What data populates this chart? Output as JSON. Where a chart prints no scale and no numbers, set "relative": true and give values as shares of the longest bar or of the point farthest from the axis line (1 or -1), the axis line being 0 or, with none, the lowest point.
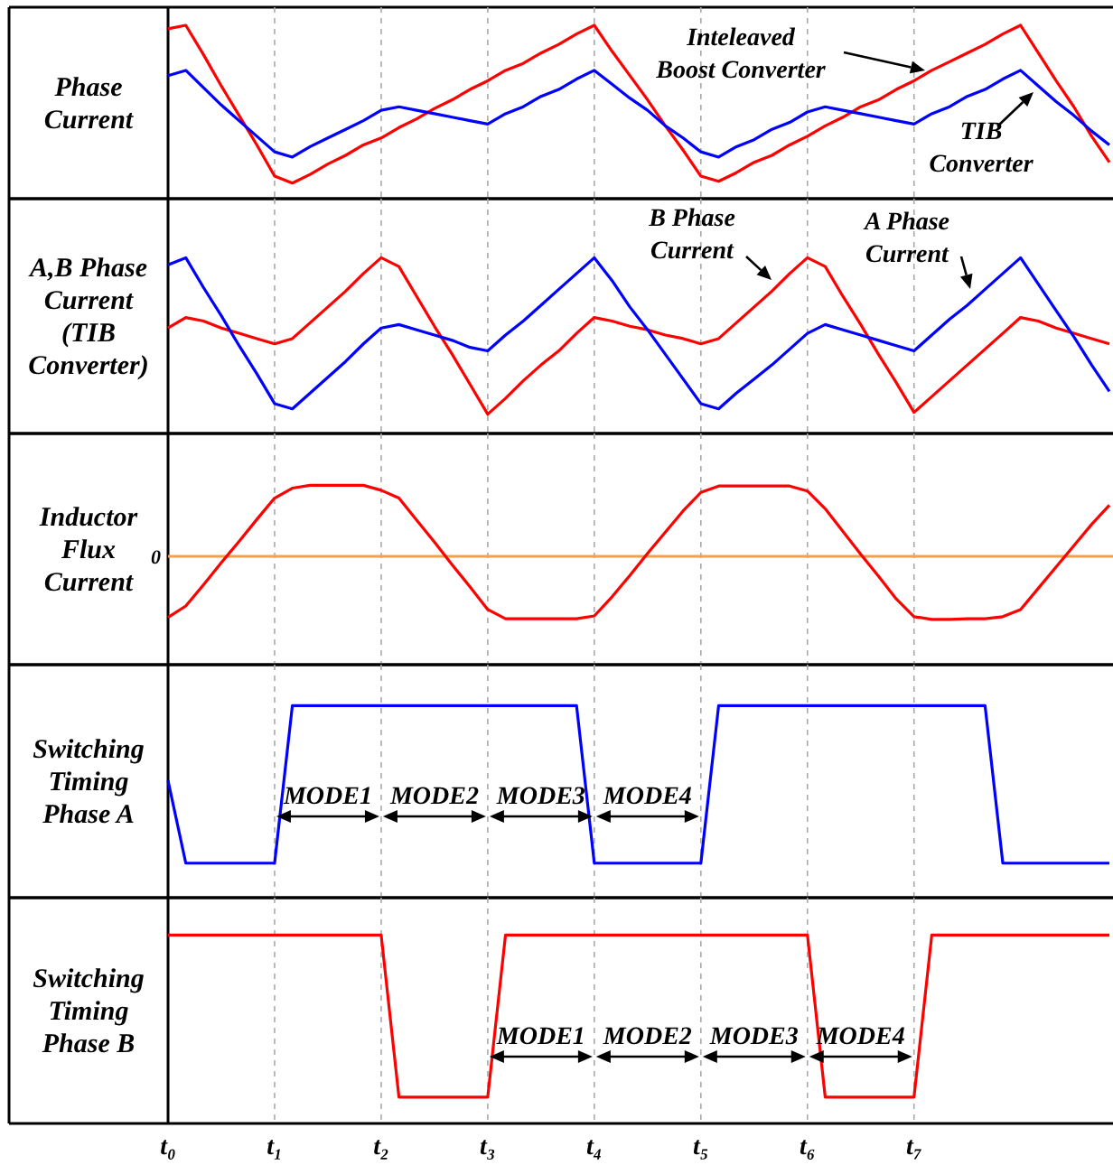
{
  "chart_data": [
    {
      "type": "line",
      "ylabel": "Phase Current",
      "relative": true,
      "grid": "x",
      "tick_labels": false,
      "categories": [
        null,
        null,
        null,
        null,
        null,
        null,
        null,
        null,
        null,
        null,
        null,
        null,
        null,
        null,
        null,
        null,
        null,
        null,
        null,
        null,
        null,
        null,
        null,
        null,
        null,
        null,
        null,
        null,
        null,
        null,
        null,
        null,
        null,
        null,
        null,
        null,
        null,
        null,
        null,
        null,
        null,
        null,
        null,
        null,
        null,
        null,
        null,
        null,
        null,
        null,
        null,
        null,
        null,
        null
      ],
      "series": [
        {
          "color": "#ff0000",
          "values": [
            0.98,
            1,
            0.83,
            0.65,
            0.48,
            0.31,
            0.13,
            0.09,
            0.14,
            0.2,
            0.25,
            0.31,
            0.35,
            0.41,
            0.46,
            0.52,
            0.57,
            0.63,
            0.68,
            0.74,
            0.78,
            0.84,
            0.89,
            0.95,
            1,
            0.85,
            0.71,
            0.57,
            0.42,
            0.28,
            0.13,
            0.1,
            0.15,
            0.21,
            0.25,
            0.31,
            0.36,
            0.42,
            0.47,
            0.53,
            0.57,
            0.63,
            0.68,
            0.74,
            0.79,
            0.84,
            0.89,
            0.95,
            1,
            0.84,
            0.68,
            0.53,
            0.36,
            0.21
          ]
        },
        {
          "color": "#0000ff",
          "values": [
            0.71,
            0.74,
            0.64,
            0.54,
            0.45,
            0.36,
            0.27,
            0.24,
            0.3,
            0.35,
            0.4,
            0.45,
            0.51,
            0.53,
            0.51,
            0.49,
            0.47,
            0.45,
            0.43,
            0.49,
            0.53,
            0.59,
            0.63,
            0.69,
            0.74,
            0.66,
            0.58,
            0.51,
            0.42,
            0.35,
            0.27,
            0.24,
            0.3,
            0.34,
            0.4,
            0.44,
            0.5,
            0.53,
            0.51,
            0.49,
            0.47,
            0.45,
            0.43,
            0.49,
            0.53,
            0.59,
            0.63,
            0.69,
            0.74,
            0.65,
            0.56,
            0.48,
            0.39,
            0.31
          ]
        }
      ],
      "annotations": [
        "Inteleaved Boost Converter",
        "TIB Converter"
      ]
    },
    {
      "type": "line",
      "ylabel": "A,B Phase Current (TIB Converter)",
      "relative": true,
      "grid": "x",
      "tick_labels": false,
      "categories": [
        null,
        null,
        null,
        null,
        null,
        null,
        null,
        null,
        null,
        null,
        null,
        null,
        null,
        null,
        null,
        null,
        null,
        null,
        null,
        null,
        null,
        null,
        null,
        null,
        null,
        null,
        null,
        null,
        null,
        null,
        null,
        null,
        null,
        null,
        null,
        null,
        null,
        null,
        null,
        null,
        null,
        null,
        null,
        null,
        null,
        null,
        null,
        null,
        null,
        null,
        null,
        null,
        null,
        null
      ],
      "series": [
        {
          "color": "#ff0000",
          "values": [
            0.6,
            0.66,
            0.64,
            0.6,
            0.57,
            0.54,
            0.51,
            0.54,
            0.63,
            0.72,
            0.81,
            0.91,
            1,
            0.95,
            0.78,
            0.61,
            0.45,
            0.28,
            0.11,
            0.2,
            0.3,
            0.39,
            0.47,
            0.57,
            0.66,
            0.64,
            0.61,
            0.59,
            0.56,
            0.54,
            0.51,
            0.54,
            0.63,
            0.72,
            0.81,
            0.91,
            1,
            0.95,
            0.78,
            0.62,
            0.45,
            0.29,
            0.12,
            0.21,
            0.3,
            0.39,
            0.48,
            0.57,
            0.66,
            0.64,
            0.6,
            0.57,
            0.54,
            0.51
          ]
        },
        {
          "color": "#0000ff",
          "values": [
            0.96,
            1,
            0.83,
            0.67,
            0.5,
            0.34,
            0.17,
            0.14,
            0.23,
            0.32,
            0.41,
            0.51,
            0.6,
            0.62,
            0.59,
            0.56,
            0.53,
            0.49,
            0.47,
            0.56,
            0.64,
            0.73,
            0.82,
            0.91,
            1,
            0.87,
            0.72,
            0.59,
            0.45,
            0.31,
            0.17,
            0.14,
            0.23,
            0.31,
            0.39,
            0.48,
            0.57,
            0.62,
            0.59,
            0.56,
            0.53,
            0.5,
            0.47,
            0.56,
            0.65,
            0.73,
            0.82,
            0.91,
            1,
            0.85,
            0.7,
            0.55,
            0.39,
            0.24
          ]
        }
      ],
      "annotations": [
        "B Phase Current",
        "A Phase Current"
      ]
    },
    {
      "type": "line",
      "ylabel": "Inductor Flux Current",
      "relative": true,
      "grid": "x",
      "tick_labels": false,
      "categories": [
        null,
        null,
        null,
        null,
        null,
        null,
        null,
        null,
        null,
        null,
        null,
        null,
        null,
        null,
        null,
        null,
        null,
        null,
        null,
        null,
        null,
        null,
        null,
        null,
        null,
        null,
        null,
        null,
        null,
        null,
        null,
        null,
        null,
        null,
        null,
        null,
        null,
        null,
        null,
        null,
        null,
        null,
        null,
        null,
        null,
        null,
        null,
        null,
        null,
        null,
        null,
        null,
        null,
        null
      ],
      "series": [
        {
          "color": "#ff0000",
          "values": [
            -0.86,
            -0.7,
            -0.4,
            -0.09,
            0.21,
            0.52,
            0.82,
            0.96,
            1,
            1,
            1,
            1,
            0.93,
            0.82,
            0.51,
            0.2,
            -0.12,
            -0.43,
            -0.75,
            -0.88,
            -0.88,
            -0.88,
            -0.88,
            -0.88,
            -0.84,
            -0.57,
            -0.27,
            0.04,
            0.34,
            0.64,
            0.9,
            0.99,
            0.99,
            0.99,
            0.99,
            0.99,
            0.92,
            0.67,
            0.35,
            0.03,
            -0.28,
            -0.6,
            -0.85,
            -0.89,
            -0.89,
            -0.88,
            -0.88,
            -0.85,
            -0.75,
            -0.45,
            -0.15,
            0.15,
            0.45,
            0.72
          ]
        }
      ],
      "ref_lines": [
        {
          "axis": "y",
          "value": 0,
          "label": "0",
          "color": "#f5a04a"
        }
      ]
    },
    {
      "type": "line",
      "ylabel": "Switching Timing Phase A",
      "relative": true,
      "grid": "x",
      "tick_labels": false,
      "categories": [
        null,
        null,
        null,
        null,
        null,
        null,
        null,
        null,
        null,
        null,
        null,
        null,
        null,
        null,
        null,
        null,
        null,
        null,
        null,
        null,
        null,
        null,
        null,
        null,
        null,
        null,
        null,
        null,
        null,
        null,
        null,
        null,
        null,
        null,
        null,
        null,
        null,
        null,
        null,
        null,
        null,
        null,
        null,
        null,
        null,
        null,
        null,
        null,
        null,
        null,
        null,
        null,
        null,
        null
      ],
      "series": [
        {
          "color": "#0000ff",
          "values": [
            0.61,
            0.18,
            0.18,
            0.18,
            0.18,
            0.18,
            0.18,
            1,
            1,
            1,
            1,
            1,
            1,
            1,
            1,
            1,
            1,
            1,
            1,
            1,
            1,
            1,
            1,
            1,
            0.18,
            0.18,
            0.18,
            0.18,
            0.18,
            0.18,
            0.18,
            1,
            1,
            1,
            1,
            1,
            1,
            1,
            1,
            1,
            1,
            1,
            1,
            1,
            1,
            1,
            1,
            0.18,
            0.18,
            0.18,
            0.18,
            0.18,
            0.18,
            0.18
          ]
        }
      ],
      "annotations": [
        "MODE1",
        "MODE2",
        "MODE3",
        "MODE4"
      ]
    },
    {
      "type": "line",
      "ylabel": "Switching Timing Phase B",
      "relative": true,
      "grid": "x",
      "tick_labels": "x",
      "categories": [
        "t₀",
        null,
        null,
        null,
        null,
        null,
        "t₁",
        null,
        null,
        null,
        null,
        null,
        "t₂",
        null,
        null,
        null,
        null,
        null,
        "t₃",
        null,
        null,
        null,
        null,
        null,
        "t₄",
        null,
        null,
        null,
        null,
        null,
        "t₅",
        null,
        null,
        null,
        null,
        null,
        "t₆",
        null,
        null,
        null,
        null,
        null,
        "t₇",
        null,
        null,
        null,
        null,
        null,
        null,
        null,
        null,
        null,
        null,
        null
      ],
      "series": [
        {
          "color": "#ff0000",
          "values": [
            1,
            1,
            1,
            1,
            1,
            1,
            1,
            1,
            1,
            1,
            1,
            1,
            1,
            0.14,
            0.14,
            0.14,
            0.14,
            0.14,
            0.14,
            1,
            1,
            1,
            1,
            1,
            1,
            1,
            1,
            1,
            1,
            1,
            1,
            1,
            1,
            1,
            1,
            1,
            1,
            0.14,
            0.14,
            0.14,
            0.14,
            0.14,
            0.14,
            1,
            1,
            1,
            1,
            1,
            1,
            1,
            1,
            1,
            1,
            1
          ]
        }
      ],
      "annotations": [
        "MODE1",
        "MODE2",
        "MODE3",
        "MODE4"
      ]
    }
  ]
}
